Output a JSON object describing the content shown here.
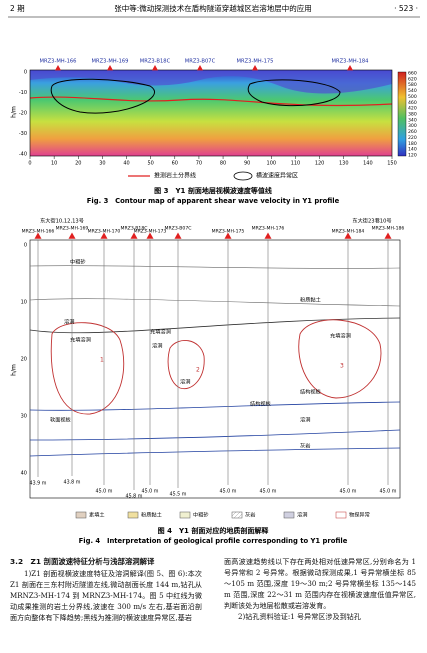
{
  "header": {
    "issue": "2 期",
    "title": "张中等:微动探测技术在盾构隧道穿越城区岩溶地层中的应用",
    "page": "· 523 ·"
  },
  "figure3": {
    "boreholes": [
      "MRZ3-MH-166",
      "MRZ3-MH-169",
      "MRZ3-B18C",
      "MRZ3-B07C",
      "MRZ3-MH-175",
      "MRZ3-MH-184"
    ],
    "xticks": [
      "0",
      "10",
      "20",
      "30",
      "40",
      "50",
      "60",
      "70",
      "80",
      "90",
      "100",
      "110",
      "120",
      "130",
      "140",
      "150"
    ],
    "yticks": [
      "0",
      "-10",
      "-20",
      "-30",
      "-40"
    ],
    "y_label": "h/m",
    "colorbar": [
      "660",
      "620",
      "580",
      "540",
      "500",
      "460",
      "420",
      "380",
      "340",
      "300",
      "260",
      "220",
      "180",
      "140",
      "120"
    ],
    "legend": [
      "推测岩土分界线",
      "横波速度异常区"
    ],
    "caption_cn": "图 3　Y1 剖面地层视横波速度等值线",
    "caption_en": "Fig. 3　Contour map of apparent shear wave velocity in Y1 profile"
  },
  "figure4": {
    "sites": [
      "东大街10,12,13号",
      "东大街23巷10号"
    ],
    "boreholes": [
      "MRZ3-MH-166",
      "MRZ3-MH-169",
      "MRZ3-MH-170",
      "MRZ3-B18C",
      "MRZ3-MH-173",
      "MRZ3-B07C",
      "MRZ3-MH-175",
      "MRZ3-MH-176",
      "MRZ3-MH-184",
      "MRZ3-MH-186"
    ],
    "depths": [
      "43.9 m",
      "43.8 m",
      "45.0 m",
      "45.8 m",
      "45.0 m",
      "45.5 m",
      "45.0 m",
      "45.0 m",
      "45.0 m",
      "45.0 m"
    ],
    "yticks": [
      "0",
      "10",
      "20",
      "30",
      "40"
    ],
    "y_label": "h/m",
    "strata": [
      "中粗砂",
      "粉质黏土",
      "溶洞",
      "充填溶洞",
      "溶洞",
      "充填溶洞",
      "溶洞",
      "充填溶洞",
      "结构视板",
      "软面视板",
      "灰岩",
      "结构视板",
      "溶洞"
    ],
    "anomalies": [
      "1",
      "2",
      "3"
    ],
    "legend": [
      "素填土",
      "粉质黏土",
      "中粗砂",
      "灰岩",
      "溶洞",
      "物探异常"
    ],
    "caption_cn": "图 4　Y1 剖面对应的地质剖面解释",
    "caption_en": "Fig. 4　Interpretation of geological profile corresponding to Y1 profile"
  },
  "body": {
    "heading": "3.2　Z1 剖面波速特征分析与浅部溶洞解译",
    "left": "1)Z1 剖面视横波速度特征及溶洞解译(图 5、图 6):本次 Z1 剖面在三东村附近隧道左线,微动剖面长度 144 m,钻孔从 MRNZ3-MH-174 到 MRNZ3-MH-174。图 5 中红线为微动成果推测的岩土分界线,波速在 300 m/s 左右,基岩面沿剖面方向整体有下降趋势;黑线为推测的横波速度异常区,基岩",
    "right1": "面高波速趋势线以下存在两处相对低速异常区,分别命名为 1 号异常和 2 号异常。根据微动探测成果,1 号异常横坐标 85～105 m 范围,深度 19～30 m;2 号异常横坐标 135～145 m 范围,深度 22～31 m 范围内存在视横波速度低值异常区,判断该处为地层松散或岩溶发育。",
    "right2": "2)钻孔资料验证:1 号异常区涉及到钻孔"
  }
}
